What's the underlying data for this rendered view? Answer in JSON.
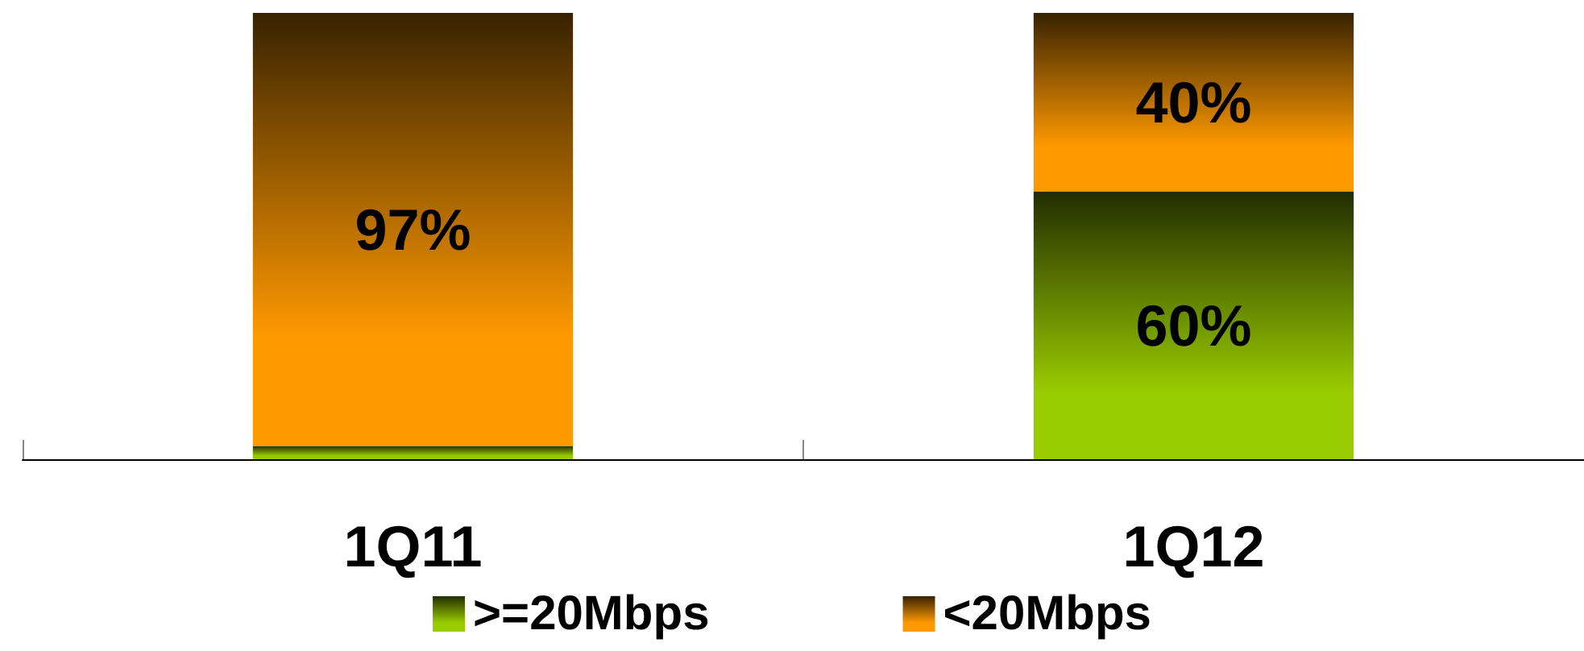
{
  "chart_data": {
    "type": "bar",
    "stacked": true,
    "categories": [
      "1Q11",
      "1Q12"
    ],
    "series": [
      {
        "name": ">=20Mbps",
        "color": "#99cc00",
        "values": [
          3,
          60
        ],
        "value_labels": [
          null,
          "60%"
        ]
      },
      {
        "name": "<20Mbps",
        "color": "#ff9900",
        "values": [
          97,
          40
        ],
        "value_labels": [
          "97%",
          "40%"
        ]
      }
    ],
    "ylim": [
      0,
      100
    ],
    "legend": "bottom"
  }
}
